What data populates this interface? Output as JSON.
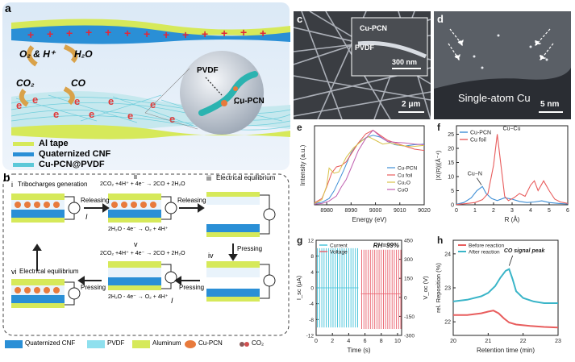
{
  "panel_a": {
    "label": "a",
    "o2_h": "O₂ & H⁺",
    "h2o": "H₂O",
    "co2": "CO₂",
    "co": "CO",
    "pvdf": "PVDF",
    "cupcn": "Cu-PCN",
    "legend": [
      "Al tape",
      "Quaternized CNF",
      "Cu-PCN@PVDF"
    ],
    "colors": {
      "al_tape": "#d6e95a",
      "cnf": "#2a8fd6",
      "pvdf": "#5cc8d8",
      "cupcn": "#e87a3c"
    }
  },
  "panel_b": {
    "label": "b",
    "steps": [
      {
        "num": "i",
        "title": "Tribocharges generation"
      },
      {
        "num": "ii",
        "eq_top": "2CO₂ +4H⁺ + 4e⁻ → 2CO + 2H₂O",
        "eq_bottom": "2H₂O - 4e⁻ → O₂ + 4H⁺"
      },
      {
        "num": "iii",
        "title": "Electrical equilibrium"
      },
      {
        "num": "iv"
      },
      {
        "num": "v",
        "eq_top": "2CO₂ +4H⁺ + 4e⁻ → 2CO + 2H₂O",
        "eq_bottom": "2H₂O - 4e⁻ → O₂ + 4H⁺"
      },
      {
        "num": "vi",
        "title": "Electrical equilibrium"
      }
    ],
    "arrows": [
      "Releasing",
      "Releasing",
      "Pressing",
      "Pressing",
      "Pressing"
    ],
    "current": "I",
    "legend": [
      "Quaternized CNF",
      "PVDF",
      "Aluminum",
      "Cu-PCN",
      "CO₂"
    ]
  },
  "panel_c": {
    "label": "c",
    "inset_labels": [
      "Cu-PCN",
      "PVDF"
    ],
    "inset_scale": "300 nm",
    "scale": "2 μm"
  },
  "panel_d": {
    "label": "d",
    "caption": "Single-atom Cu",
    "scale": "5 nm"
  },
  "panel_e": {
    "label": "e",
    "chart_data": {
      "type": "line",
      "xlabel": "Energy (eV)",
      "ylabel": "Intensity (a.u.)",
      "xlim": [
        8975,
        9020
      ],
      "ylim": [
        0,
        1.25
      ],
      "xticks": [
        "8980",
        "8990",
        "9000",
        "9010",
        "9020"
      ],
      "legend_position": "right",
      "series": [
        {
          "name": "Cu-PCN",
          "color": "#3f8fd6",
          "x": [
            8975,
            8978,
            8981,
            8983,
            8985,
            8987,
            8990,
            8993,
            8996,
            8999,
            9002,
            9005,
            9008,
            9012,
            9016,
            9020
          ],
          "y": [
            0.02,
            0.04,
            0.1,
            0.22,
            0.38,
            0.55,
            0.82,
            0.98,
            1.06,
            1.1,
            1.07,
            1.0,
            0.95,
            0.93,
            0.95,
            0.96
          ]
        },
        {
          "name": "Cu foil",
          "color": "#e85d5d",
          "x": [
            8975,
            8978,
            8980,
            8982,
            8984,
            8986,
            8988,
            8990,
            8993,
            8996,
            8999,
            9002,
            9005,
            9008,
            9012,
            9016,
            9020
          ],
          "y": [
            0.03,
            0.1,
            0.28,
            0.5,
            0.6,
            0.62,
            0.68,
            0.8,
            0.98,
            1.12,
            1.18,
            1.1,
            1.02,
            0.98,
            0.93,
            0.88,
            0.86
          ]
        },
        {
          "name": "Cu₂O",
          "color": "#d9c24a",
          "x": [
            8975,
            8978,
            8980,
            8981,
            8983,
            8985,
            8988,
            8991,
            8994,
            8997,
            9000,
            9003,
            9006,
            9010,
            9015,
            9020
          ],
          "y": [
            0.02,
            0.08,
            0.3,
            0.58,
            0.5,
            0.52,
            0.75,
            0.9,
            1.0,
            1.08,
            1.02,
            0.96,
            0.98,
            0.94,
            0.92,
            0.94
          ]
        },
        {
          "name": "CuO",
          "color": "#c060b0",
          "x": [
            8975,
            8978,
            8981,
            8984,
            8986,
            8988,
            8990,
            8993,
            8996,
            8999,
            9002,
            9005,
            9008,
            9012,
            9016,
            9020
          ],
          "y": [
            0.01,
            0.02,
            0.06,
            0.14,
            0.28,
            0.4,
            0.58,
            0.86,
            1.05,
            1.18,
            1.08,
            1.0,
            0.99,
            0.98,
            0.96,
            0.95
          ]
        }
      ]
    }
  },
  "panel_f": {
    "label": "f",
    "chart_data": {
      "type": "line",
      "xlabel": "R (Å)",
      "ylabel": "|X(R)|(Å⁻⁴)",
      "xlim": [
        0,
        6
      ],
      "ylim": [
        0,
        28
      ],
      "xticks": [
        "0",
        "1",
        "2",
        "3",
        "4",
        "5",
        "6"
      ],
      "yticks": [
        "0",
        "5",
        "10",
        "15",
        "20",
        "25"
      ],
      "annotations": [
        "Cu−Cu",
        "Cu−N"
      ],
      "legend_position": "top-left",
      "series": [
        {
          "name": "Cu-PCN",
          "color": "#3f8fd6",
          "x": [
            0,
            0.4,
            0.8,
            1.1,
            1.4,
            1.6,
            1.9,
            2.2,
            2.6,
            3.0,
            3.4,
            3.8,
            4.2,
            4.6,
            5.0,
            5.5,
            6.0
          ],
          "y": [
            0.2,
            0.8,
            2.5,
            5.0,
            6.5,
            4.0,
            2.2,
            1.5,
            2.5,
            2.0,
            1.2,
            0.8,
            1.0,
            1.4,
            0.8,
            0.5,
            0.3
          ]
        },
        {
          "name": "Cu foil",
          "color": "#e85d5d",
          "x": [
            0,
            0.5,
            1.0,
            1.4,
            1.7,
            2.0,
            2.2,
            2.4,
            2.6,
            2.8,
            3.1,
            3.4,
            3.7,
            4.0,
            4.2,
            4.4,
            4.7,
            5.0,
            5.3,
            5.6,
            6.0
          ],
          "y": [
            0.1,
            0.4,
            0.8,
            1.8,
            4.0,
            14.0,
            25.0,
            14.0,
            3.0,
            1.5,
            2.5,
            4.0,
            3.0,
            7.0,
            8.5,
            5.0,
            8.5,
            5.0,
            2.0,
            1.0,
            0.5
          ]
        }
      ]
    }
  },
  "panel_g": {
    "label": "g",
    "annotation": "RH=99%",
    "chart_data": {
      "type": "line",
      "xlabel": "Time (s)",
      "ylabel_left": "I_sc (μA)",
      "ylabel_right": "V_oc (V)",
      "xlim": [
        0,
        10.5
      ],
      "ylim_left": [
        -12,
        12
      ],
      "ylim_right": [
        -350,
        450
      ],
      "xticks": [
        "0",
        "2",
        "4",
        "6",
        "8",
        "10"
      ],
      "yticks_left": [
        "-12",
        "-8",
        "-4",
        "0",
        "4",
        "8",
        "12"
      ],
      "yticks_right": [
        "-300",
        "-150",
        "0",
        "150",
        "300",
        "450"
      ],
      "legend_position": "top-left",
      "series": [
        {
          "name": "Current",
          "color": "#3ec0d8",
          "x_range": [
            0.15,
            5.1
          ],
          "pulses": 19,
          "amplitude": 10
        },
        {
          "name": "Voltage",
          "color": "#e85d6a",
          "x_range": [
            5.6,
            10.4
          ],
          "pulses": 19,
          "amplitude": 370
        }
      ]
    }
  },
  "panel_h": {
    "label": "h",
    "annotation": "CO signal peak",
    "chart_data": {
      "type": "line",
      "xlabel": "Retention time (min)",
      "ylabel": "rel. Reposition (%)",
      "xlim": [
        20,
        23
      ],
      "ylim": [
        21.6,
        24.4
      ],
      "xticks": [
        "20",
        "21",
        "22",
        "23"
      ],
      "yticks": [
        "22",
        "23",
        "24"
      ],
      "legend_position": "top-left",
      "series": [
        {
          "name": "Before reaction",
          "color": "#e85d5d",
          "x": [
            20,
            20.4,
            20.8,
            21.0,
            21.15,
            21.3,
            21.45,
            21.6,
            21.8,
            22.2,
            22.6,
            23.0
          ],
          "y": [
            22.2,
            22.2,
            22.25,
            22.3,
            22.33,
            22.25,
            22.1,
            21.98,
            21.92,
            21.88,
            21.85,
            21.83
          ]
        },
        {
          "name": "After reaction",
          "color": "#3ab5c8",
          "x": [
            20,
            20.4,
            20.8,
            21.0,
            21.2,
            21.35,
            21.5,
            21.6,
            21.7,
            21.8,
            22.0,
            22.3,
            22.6,
            23.0
          ],
          "y": [
            22.6,
            22.65,
            22.75,
            22.85,
            23.05,
            23.3,
            23.5,
            23.55,
            23.25,
            22.9,
            22.7,
            22.6,
            22.55,
            22.55
          ]
        }
      ]
    }
  }
}
